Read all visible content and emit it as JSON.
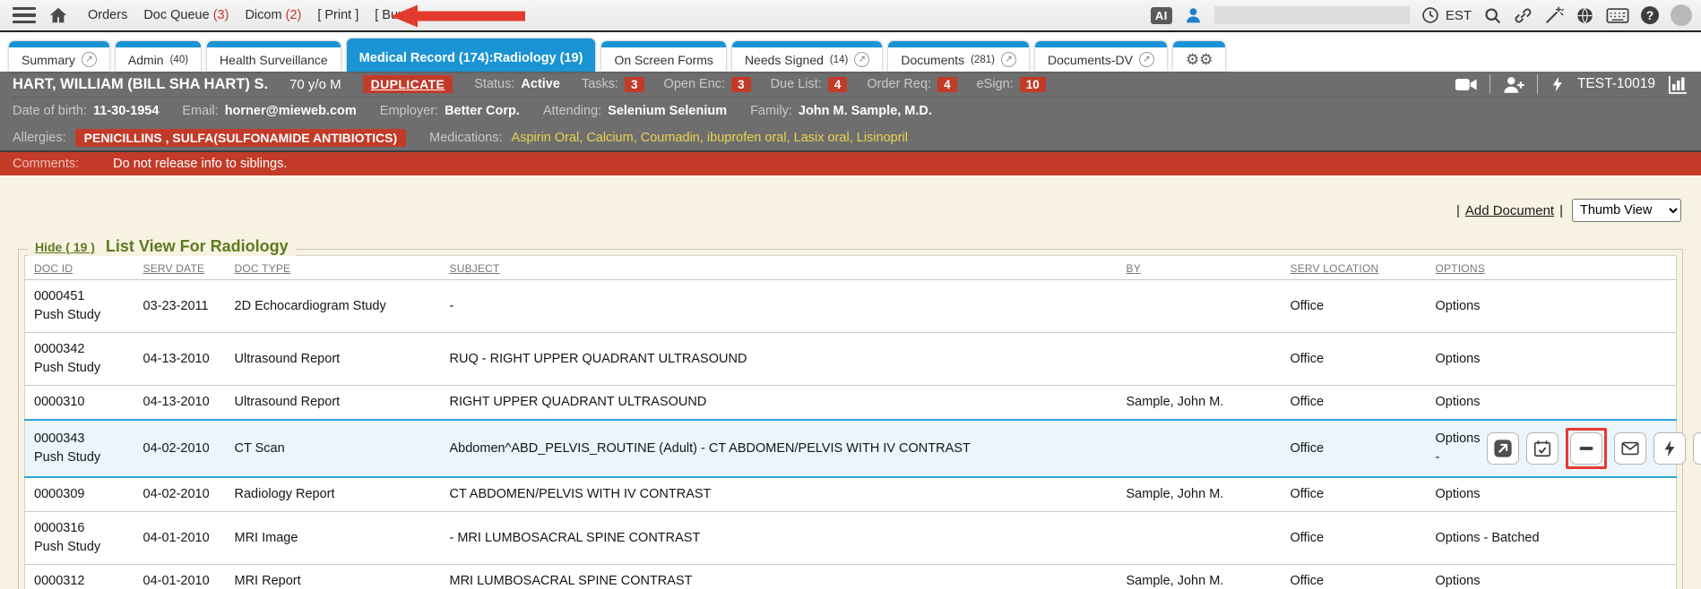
{
  "topbar": {
    "menu": [
      {
        "label": "Orders"
      },
      {
        "label": "Doc Queue",
        "count": "(3)"
      },
      {
        "label": "Dicom",
        "count": "(2)"
      },
      {
        "label": "[ Print ]"
      },
      {
        "label": "[ Burn ]"
      }
    ],
    "ai_badge": "AI",
    "timezone": "EST",
    "help_glyph": "?",
    "icons": [
      "hamburger-icon",
      "home-icon",
      "user-icon",
      "clock-icon",
      "search-icon",
      "link-icon",
      "wand-icon",
      "globe-icon",
      "keyboard-icon",
      "help-icon"
    ]
  },
  "tabs": [
    {
      "label": "Summary",
      "external": true
    },
    {
      "label": "Admin",
      "count": "(40)"
    },
    {
      "label": "Health Surveillance"
    },
    {
      "label": "Medical Record (174):Radiology (19)",
      "active": true
    },
    {
      "label": "On Screen Forms"
    },
    {
      "label": "Needs Signed",
      "count": "(14)",
      "external": true
    },
    {
      "label": "Documents",
      "count": "(281)",
      "external": true
    },
    {
      "label": "Documents-DV",
      "external": true
    },
    {
      "icon": "gears",
      "label": ""
    }
  ],
  "patient": {
    "name": "HART, WILLIAM (BILL SHA HART) S.",
    "age_sex": "70 y/o M",
    "duplicate": "DUPLICATE",
    "status_label": "Status:",
    "status": "Active",
    "counters": [
      {
        "label": "Tasks:",
        "value": "3"
      },
      {
        "label": "Open Enc:",
        "value": "3"
      },
      {
        "label": "Due List:",
        "value": "4"
      },
      {
        "label": "Order Req:",
        "value": "4"
      },
      {
        "label": "eSign:",
        "value": "10"
      }
    ],
    "chart_id": "TEST-10019",
    "dob_label": "Date of birth:",
    "dob": "11-30-1954",
    "email_label": "Email:",
    "email": "horner@mieweb.com",
    "employer_label": "Employer:",
    "employer": "Better Corp.",
    "attending_label": "Attending:",
    "attending": "Selenium Selenium",
    "family_label": "Family:",
    "family": "John M. Sample, M.D.",
    "allergies_label": "Allergies:",
    "allergies": "PENICILLINS , SULFA(SULFONAMIDE ANTIBIOTICS)",
    "medications_label": "Medications:",
    "medications": "Aspirin Oral, Calcium, Coumadin, ibuprofen oral, Lasix oral, Lisinopril"
  },
  "comments": {
    "label": "Comments:",
    "text": "Do not release info to siblings."
  },
  "toolbar": {
    "pipe": "|",
    "add_document": "Add Document",
    "view_select": "Thumb View"
  },
  "list": {
    "hide_link": "Hide ( 19 )",
    "title": "List View For Radiology",
    "columns": [
      "DOC ID",
      "SERV DATE",
      "DOC TYPE",
      "SUBJECT",
      "BY",
      "SERV LOCATION",
      "OPTIONS"
    ],
    "row_icons": [
      {
        "name": "open-document-icon"
      },
      {
        "name": "calendar-review-icon"
      },
      {
        "name": "remove-icon",
        "annotated": true
      },
      {
        "name": "email-icon"
      },
      {
        "name": "quick-action-icon"
      },
      {
        "name": "comment-icon"
      }
    ],
    "rows": [
      {
        "doc_id": "0000451",
        "push": "Push Study",
        "serv_date": "03-23-2011",
        "doc_type": "2D Echocardiogram Study",
        "subject": "-",
        "by": "",
        "serv_location": "Office",
        "options": "Options"
      },
      {
        "doc_id": "0000342",
        "push": "Push Study",
        "serv_date": "04-13-2010",
        "doc_type": "Ultrasound Report",
        "subject": "RUQ - RIGHT UPPER QUADRANT ULTRASOUND",
        "by": "",
        "serv_location": "Office",
        "options": "Options"
      },
      {
        "doc_id": "0000310",
        "serv_date": "04-13-2010",
        "doc_type": "Ultrasound Report",
        "subject": "RIGHT UPPER QUADRANT ULTRASOUND",
        "by": "Sample, John M.",
        "serv_location": "Office",
        "options": "Options"
      },
      {
        "doc_id": "0000343",
        "push": "Push Study",
        "serv_date": "04-02-2010",
        "doc_type": "CT Scan",
        "subject": "Abdomen^ABD_PELVIS_ROUTINE (Adult) - CT ABDOMEN/PELVIS WITH IV CONTRAST",
        "by": "",
        "serv_location": "Office",
        "options": "Options -",
        "selected": true,
        "has_icons": true
      },
      {
        "doc_id": "0000309",
        "serv_date": "04-02-2010",
        "doc_type": "Radiology Report",
        "subject": "CT ABDOMEN/PELVIS WITH IV CONTRAST",
        "by": "Sample, John M.",
        "serv_location": "Office",
        "options": "Options"
      },
      {
        "doc_id": "0000316",
        "push": "Push Study",
        "serv_date": "04-01-2010",
        "doc_type": "MRI Image",
        "subject": "- MRI LUMBOSACRAL SPINE CONTRAST",
        "by": "",
        "serv_location": "Office",
        "options": "Options - Batched"
      },
      {
        "doc_id": "0000312",
        "serv_date": "04-01-2010",
        "doc_type": "MRI Report",
        "subject": "MRI LUMBOSACRAL SPINE CONTRAST",
        "by": "Sample, John M.",
        "serv_location": "Office",
        "options": "Options"
      }
    ]
  },
  "colors": {
    "accent_blue": "#1a94d4",
    "alert_red": "#c23a28",
    "comments_red": "#c43a28",
    "header_gray": "#6e6e6e",
    "page_cream": "#f8f2e2",
    "title_olive": "#5d7a1f",
    "medication_gold": "#e9d44c",
    "selected_row_blue": "#eaf5fc",
    "annotation_red": "#e8392f"
  }
}
